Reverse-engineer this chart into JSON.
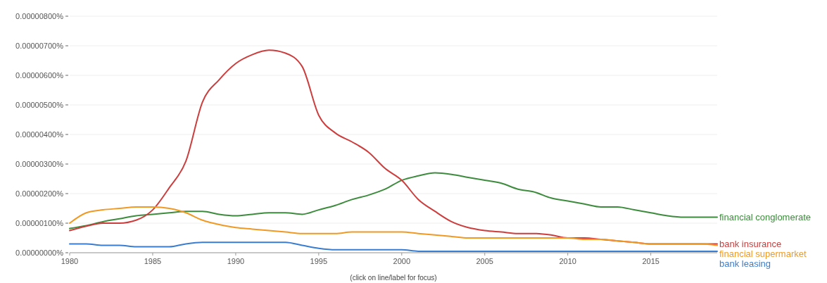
{
  "chart_data": {
    "type": "line",
    "annotations": [
      "(click on line/label for focus)"
    ],
    "x": [
      1980,
      1981,
      1982,
      1983,
      1984,
      1985,
      1986,
      1987,
      1988,
      1989,
      1990,
      1991,
      1992,
      1993,
      1994,
      1995,
      1996,
      1997,
      1998,
      1999,
      2000,
      2001,
      2002,
      2003,
      2004,
      2005,
      2006,
      2007,
      2008,
      2009,
      2010,
      2011,
      2012,
      2013,
      2014,
      2015,
      2016,
      2017,
      2018,
      2019
    ],
    "xlim": [
      1980,
      2019
    ],
    "xticks": [
      1980,
      1985,
      1990,
      1995,
      2000,
      2005,
      2010,
      2015
    ],
    "ylim": [
      0,
      8e-06
    ],
    "yticks": [
      {
        "value": 0,
        "label": "0.00000000%"
      },
      {
        "value": 1e-06,
        "label": "0.00000100%"
      },
      {
        "value": 2e-06,
        "label": "0.00000200%"
      },
      {
        "value": 3e-06,
        "label": "0.00000300%"
      },
      {
        "value": 4e-06,
        "label": "0.00000400%"
      },
      {
        "value": 5e-06,
        "label": "0.00000500%"
      },
      {
        "value": 6e-06,
        "label": "0.00000600%"
      },
      {
        "value": 7e-06,
        "label": "0.00000700%"
      },
      {
        "value": 8e-06,
        "label": "0.00000800%"
      }
    ],
    "grid": "y",
    "line_style": "solid",
    "series": [
      {
        "name": "financial conglomerate",
        "color": "#3d8b3d",
        "values": [
          8.2e-07,
          9.2e-07,
          1.05e-06,
          1.15e-06,
          1.25e-06,
          1.3e-06,
          1.35e-06,
          1.4e-06,
          1.4e-06,
          1.3e-06,
          1.25e-06,
          1.3e-06,
          1.35e-06,
          1.35e-06,
          1.3e-06,
          1.45e-06,
          1.6e-06,
          1.8e-06,
          1.95e-06,
          2.15e-06,
          2.45e-06,
          2.6e-06,
          2.7e-06,
          2.65e-06,
          2.55e-06,
          2.45e-06,
          2.35e-06,
          2.15e-06,
          2.05e-06,
          1.85e-06,
          1.75e-06,
          1.65e-06,
          1.55e-06,
          1.55e-06,
          1.45e-06,
          1.35e-06,
          1.25e-06,
          1.2e-06,
          1.2e-06,
          1.2e-06
        ]
      },
      {
        "name": "bank insurance",
        "color": "#cc3d3d",
        "values": [
          7.5e-07,
          9e-07,
          1e-06,
          1e-06,
          1.1e-06,
          1.45e-06,
          2.2e-06,
          3.1e-06,
          5.1e-06,
          5.85e-06,
          6.4e-06,
          6.7e-06,
          6.85e-06,
          6.75e-06,
          6.3e-06,
          4.65e-06,
          4.05e-06,
          3.75e-06,
          3.4e-06,
          2.85e-06,
          2.45e-06,
          1.8e-06,
          1.4e-06,
          1.05e-06,
          8.5e-07,
          7.5e-07,
          7e-07,
          6.5e-07,
          6.5e-07,
          6e-07,
          5e-07,
          5e-07,
          4.5e-07,
          4e-07,
          3.5e-07,
          3e-07,
          3e-07,
          3e-07,
          3e-07,
          3e-07
        ]
      },
      {
        "name": "financial supermarket",
        "color": "#f09a24",
        "values": [
          1e-06,
          1.35e-06,
          1.45e-06,
          1.5e-06,
          1.55e-06,
          1.55e-06,
          1.5e-06,
          1.35e-06,
          1.1e-06,
          9.5e-07,
          8.5e-07,
          8e-07,
          7.5e-07,
          7e-07,
          6.5e-07,
          6.5e-07,
          6.5e-07,
          7e-07,
          7e-07,
          7e-07,
          7e-07,
          6.5e-07,
          6e-07,
          5.5e-07,
          5e-07,
          5e-07,
          5e-07,
          5e-07,
          5e-07,
          5e-07,
          5e-07,
          4.5e-07,
          4.5e-07,
          4e-07,
          3.5e-07,
          3e-07,
          3e-07,
          3e-07,
          3e-07,
          2.5e-07
        ]
      },
      {
        "name": "bank leasing",
        "color": "#3a7dd0",
        "values": [
          3e-07,
          3e-07,
          2.5e-07,
          2.5e-07,
          2e-07,
          2e-07,
          2e-07,
          3e-07,
          3.5e-07,
          3.5e-07,
          3.5e-07,
          3.5e-07,
          3.5e-07,
          3.5e-07,
          2.5e-07,
          1.5e-07,
          1e-07,
          1e-07,
          1e-07,
          1e-07,
          1e-07,
          5e-08,
          5e-08,
          5e-08,
          5e-08,
          5e-08,
          5e-08,
          5e-08,
          5e-08,
          5e-08,
          5e-08,
          5e-08,
          5e-08,
          5e-08,
          5e-08,
          5e-08,
          5e-08,
          5e-08,
          5e-08,
          5e-08
        ]
      }
    ]
  }
}
